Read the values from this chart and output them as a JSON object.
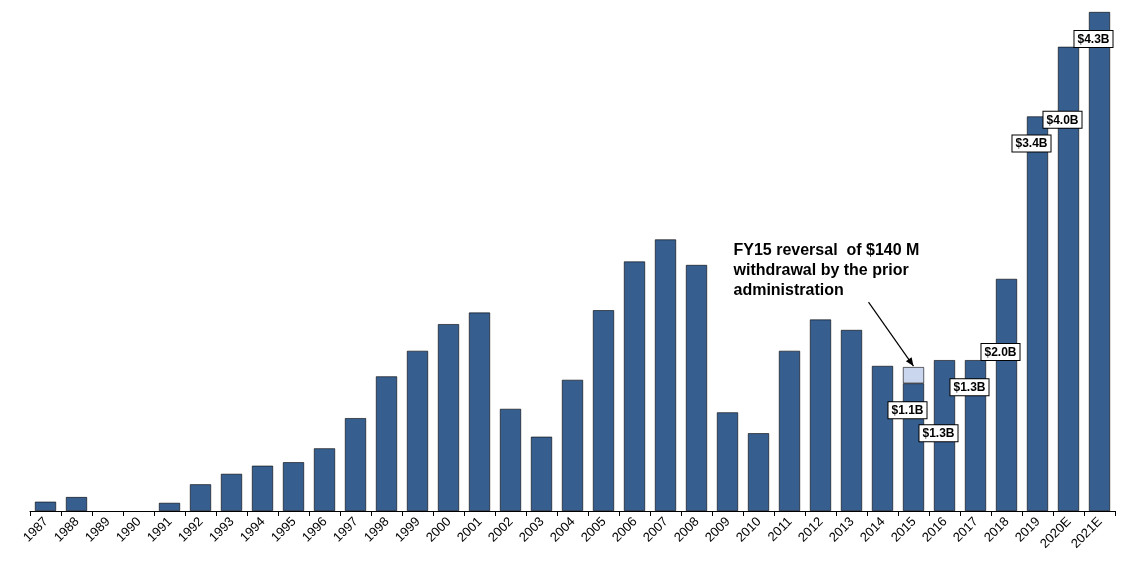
{
  "chart_data": {
    "type": "bar",
    "stacked": true,
    "categories": [
      "1987",
      "1988",
      "1989",
      "1990",
      "1991",
      "1992",
      "1993",
      "1994",
      "1995",
      "1996",
      "1997",
      "1998",
      "1999",
      "2000",
      "2001",
      "2002",
      "2003",
      "2004",
      "2005",
      "2006",
      "2007",
      "2008",
      "2009",
      "2010",
      "2011",
      "2012",
      "2013",
      "2014",
      "2015",
      "2016",
      "2017",
      "2018",
      "2019",
      "2020E",
      "2021E"
    ],
    "series": [
      {
        "color": "#365e8f",
        "values": [
          0.08,
          0.12,
          0,
          0,
          0.07,
          0.23,
          0.32,
          0.39,
          0.42,
          0.54,
          0.8,
          1.16,
          1.38,
          1.61,
          1.71,
          0.88,
          0.64,
          1.13,
          1.73,
          2.15,
          2.34,
          2.12,
          0.85,
          0.67,
          1.38,
          1.65,
          1.56,
          1.25,
          1.1,
          1.3,
          1.3,
          2.0,
          3.4,
          4.0,
          4.3
        ],
        "value_labels": [
          null,
          null,
          null,
          null,
          null,
          null,
          null,
          null,
          null,
          null,
          null,
          null,
          null,
          null,
          null,
          null,
          null,
          null,
          null,
          null,
          null,
          null,
          null,
          null,
          null,
          null,
          null,
          null,
          "$1.1B",
          "$1.3B",
          "$1.3B",
          "$2.0B",
          "$3.4B",
          "$4.0B",
          "$4.3B"
        ]
      },
      {
        "color": "#c9d6ee",
        "values": [
          null,
          null,
          null,
          null,
          null,
          null,
          null,
          null,
          null,
          null,
          null,
          null,
          null,
          null,
          null,
          null,
          null,
          null,
          null,
          null,
          null,
          null,
          null,
          null,
          null,
          null,
          null,
          null,
          0.14,
          null,
          null,
          null,
          null,
          null,
          null
        ]
      }
    ],
    "annotations": [
      {
        "text": "FY15 reversal  of $140 M\nwithdrawal by the prior\nadministration",
        "x": "2015",
        "y": 1.24
      }
    ],
    "grid": false
  }
}
